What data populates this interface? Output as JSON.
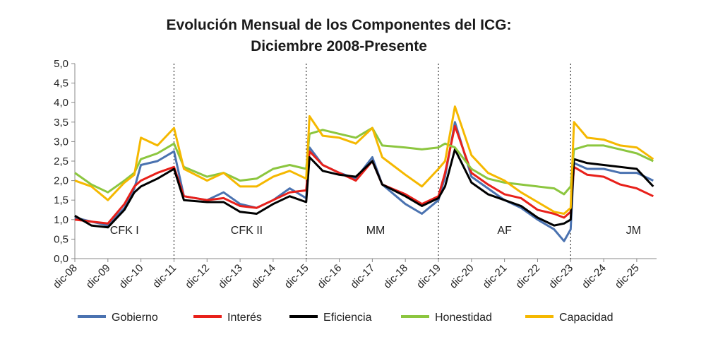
{
  "chart_data": {
    "type": "line",
    "title": "Evolución Mensual de los Componentes del ICG:",
    "subtitle": "Diciembre 2008-Presente",
    "ylim": [
      0,
      5
    ],
    "yticks": [
      "0,0",
      "0,5",
      "1,0",
      "1,5",
      "2,0",
      "2,5",
      "3,0",
      "3,5",
      "4,0",
      "4,5",
      "5,0"
    ],
    "x_tick_labels": [
      "dic-08",
      "dic-09",
      "dic-10",
      "dic-11",
      "dic-12",
      "dic-13",
      "dic-14",
      "dic-15",
      "dic-16",
      "dic-17",
      "dic-18",
      "dic-19",
      "dic-20",
      "dic-21",
      "dic-22",
      "dic-23",
      "dic-24",
      "dic-25"
    ],
    "x_unit": "years since Dec 2008 (monthly data)",
    "grid": false,
    "legend_position": "bottom",
    "period_dividers_at": [
      3,
      7,
      11,
      15
    ],
    "periods": [
      {
        "label": "CFK I",
        "x": 1.5
      },
      {
        "label": "CFK II",
        "x": 5.2
      },
      {
        "label": "MM",
        "x": 9.1
      },
      {
        "label": "AF",
        "x": 13.0
      },
      {
        "label": "JM",
        "x": 16.9
      }
    ],
    "series": [
      {
        "name": "Gobierno",
        "color": "#4a72b0",
        "points": [
          [
            0,
            1.05
          ],
          [
            0.5,
            0.95
          ],
          [
            1,
            0.85
          ],
          [
            1.5,
            1.3
          ],
          [
            1.8,
            1.8
          ],
          [
            2,
            2.4
          ],
          [
            2.5,
            2.5
          ],
          [
            3,
            2.75
          ],
          [
            3.3,
            1.6
          ],
          [
            4,
            1.5
          ],
          [
            4.5,
            1.7
          ],
          [
            5,
            1.4
          ],
          [
            5.5,
            1.3
          ],
          [
            6,
            1.5
          ],
          [
            6.5,
            1.8
          ],
          [
            7,
            1.55
          ],
          [
            7.1,
            2.85
          ],
          [
            7.5,
            2.4
          ],
          [
            8,
            2.2
          ],
          [
            8.5,
            2.05
          ],
          [
            9,
            2.6
          ],
          [
            9.3,
            1.9
          ],
          [
            10,
            1.4
          ],
          [
            10.5,
            1.15
          ],
          [
            11,
            1.5
          ],
          [
            11.2,
            2.1
          ],
          [
            11.5,
            3.5
          ],
          [
            12,
            2.1
          ],
          [
            12.5,
            1.8
          ],
          [
            13,
            1.5
          ],
          [
            13.5,
            1.3
          ],
          [
            14,
            1.0
          ],
          [
            14.5,
            0.75
          ],
          [
            14.8,
            0.45
          ],
          [
            15,
            0.75
          ],
          [
            15.1,
            2.45
          ],
          [
            15.5,
            2.3
          ],
          [
            16,
            2.3
          ],
          [
            16.5,
            2.2
          ],
          [
            17,
            2.2
          ],
          [
            17.5,
            2.0
          ]
        ]
      },
      {
        "name": "Interés",
        "color": "#e8201a",
        "points": [
          [
            0,
            1.0
          ],
          [
            0.5,
            0.95
          ],
          [
            1,
            0.9
          ],
          [
            1.5,
            1.4
          ],
          [
            1.8,
            1.85
          ],
          [
            2,
            2.0
          ],
          [
            2.5,
            2.2
          ],
          [
            3,
            2.35
          ],
          [
            3.3,
            1.6
          ],
          [
            4,
            1.5
          ],
          [
            4.5,
            1.55
          ],
          [
            5,
            1.35
          ],
          [
            5.5,
            1.3
          ],
          [
            6,
            1.5
          ],
          [
            6.5,
            1.7
          ],
          [
            7,
            1.75
          ],
          [
            7.1,
            2.75
          ],
          [
            7.5,
            2.4
          ],
          [
            8,
            2.2
          ],
          [
            8.5,
            2.0
          ],
          [
            9,
            2.5
          ],
          [
            9.3,
            1.9
          ],
          [
            10,
            1.65
          ],
          [
            10.5,
            1.4
          ],
          [
            11,
            1.6
          ],
          [
            11.2,
            2.2
          ],
          [
            11.5,
            3.4
          ],
          [
            12,
            2.2
          ],
          [
            12.5,
            1.9
          ],
          [
            13,
            1.65
          ],
          [
            13.5,
            1.55
          ],
          [
            14,
            1.25
          ],
          [
            14.5,
            1.15
          ],
          [
            14.8,
            1.05
          ],
          [
            15,
            1.2
          ],
          [
            15.1,
            2.35
          ],
          [
            15.5,
            2.15
          ],
          [
            16,
            2.1
          ],
          [
            16.5,
            1.9
          ],
          [
            17,
            1.8
          ],
          [
            17.5,
            1.6
          ]
        ]
      },
      {
        "name": "Eficiencia",
        "color": "#000000",
        "points": [
          [
            0,
            1.1
          ],
          [
            0.5,
            0.85
          ],
          [
            1,
            0.8
          ],
          [
            1.5,
            1.25
          ],
          [
            1.8,
            1.7
          ],
          [
            2,
            1.85
          ],
          [
            2.5,
            2.05
          ],
          [
            3,
            2.3
          ],
          [
            3.3,
            1.5
          ],
          [
            4,
            1.45
          ],
          [
            4.5,
            1.45
          ],
          [
            5,
            1.2
          ],
          [
            5.5,
            1.15
          ],
          [
            6,
            1.4
          ],
          [
            6.5,
            1.6
          ],
          [
            7,
            1.45
          ],
          [
            7.1,
            2.6
          ],
          [
            7.5,
            2.25
          ],
          [
            8,
            2.15
          ],
          [
            8.5,
            2.1
          ],
          [
            9,
            2.5
          ],
          [
            9.3,
            1.9
          ],
          [
            10,
            1.6
          ],
          [
            10.5,
            1.35
          ],
          [
            11,
            1.55
          ],
          [
            11.2,
            1.85
          ],
          [
            11.5,
            2.8
          ],
          [
            12,
            1.95
          ],
          [
            12.5,
            1.65
          ],
          [
            13,
            1.5
          ],
          [
            13.5,
            1.35
          ],
          [
            14,
            1.05
          ],
          [
            14.5,
            0.85
          ],
          [
            14.8,
            0.9
          ],
          [
            15,
            1.0
          ],
          [
            15.1,
            2.55
          ],
          [
            15.5,
            2.45
          ],
          [
            16,
            2.4
          ],
          [
            16.5,
            2.35
          ],
          [
            17,
            2.3
          ],
          [
            17.5,
            1.85
          ]
        ]
      },
      {
        "name": "Honestidad",
        "color": "#8cc63f",
        "points": [
          [
            0,
            2.2
          ],
          [
            0.5,
            1.9
          ],
          [
            1,
            1.7
          ],
          [
            1.5,
            2.0
          ],
          [
            1.8,
            2.2
          ],
          [
            2,
            2.55
          ],
          [
            2.5,
            2.7
          ],
          [
            3,
            2.95
          ],
          [
            3.3,
            2.35
          ],
          [
            4,
            2.1
          ],
          [
            4.5,
            2.2
          ],
          [
            5,
            2.0
          ],
          [
            5.5,
            2.05
          ],
          [
            6,
            2.3
          ],
          [
            6.5,
            2.4
          ],
          [
            7,
            2.3
          ],
          [
            7.1,
            3.2
          ],
          [
            7.5,
            3.3
          ],
          [
            8,
            3.2
          ],
          [
            8.5,
            3.1
          ],
          [
            9,
            3.35
          ],
          [
            9.3,
            2.9
          ],
          [
            10,
            2.85
          ],
          [
            10.5,
            2.8
          ],
          [
            11,
            2.85
          ],
          [
            11.2,
            2.95
          ],
          [
            11.5,
            2.85
          ],
          [
            12,
            2.3
          ],
          [
            12.5,
            2.05
          ],
          [
            13,
            1.95
          ],
          [
            13.5,
            1.9
          ],
          [
            14,
            1.85
          ],
          [
            14.5,
            1.8
          ],
          [
            14.8,
            1.65
          ],
          [
            15,
            1.85
          ],
          [
            15.1,
            2.8
          ],
          [
            15.5,
            2.9
          ],
          [
            16,
            2.9
          ],
          [
            16.5,
            2.8
          ],
          [
            17,
            2.7
          ],
          [
            17.5,
            2.5
          ]
        ]
      },
      {
        "name": "Capacidad",
        "color": "#f5b800",
        "points": [
          [
            0,
            2.0
          ],
          [
            0.5,
            1.85
          ],
          [
            1,
            1.5
          ],
          [
            1.5,
            1.95
          ],
          [
            1.8,
            2.15
          ],
          [
            2,
            3.1
          ],
          [
            2.5,
            2.9
          ],
          [
            3,
            3.35
          ],
          [
            3.3,
            2.3
          ],
          [
            4,
            2.0
          ],
          [
            4.5,
            2.2
          ],
          [
            5,
            1.85
          ],
          [
            5.5,
            1.85
          ],
          [
            6,
            2.1
          ],
          [
            6.5,
            2.25
          ],
          [
            7,
            2.05
          ],
          [
            7.1,
            3.65
          ],
          [
            7.5,
            3.15
          ],
          [
            8,
            3.1
          ],
          [
            8.5,
            2.95
          ],
          [
            9,
            3.35
          ],
          [
            9.3,
            2.6
          ],
          [
            10,
            2.15
          ],
          [
            10.5,
            1.85
          ],
          [
            11,
            2.3
          ],
          [
            11.2,
            2.5
          ],
          [
            11.5,
            3.9
          ],
          [
            12,
            2.65
          ],
          [
            12.5,
            2.2
          ],
          [
            13,
            2.0
          ],
          [
            13.5,
            1.7
          ],
          [
            14,
            1.45
          ],
          [
            14.5,
            1.2
          ],
          [
            14.8,
            1.15
          ],
          [
            15,
            1.3
          ],
          [
            15.1,
            3.5
          ],
          [
            15.5,
            3.1
          ],
          [
            16,
            3.05
          ],
          [
            16.5,
            2.9
          ],
          [
            17,
            2.85
          ],
          [
            17.5,
            2.55
          ]
        ]
      }
    ]
  }
}
